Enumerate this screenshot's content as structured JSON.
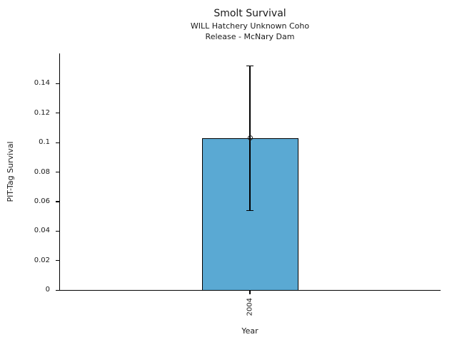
{
  "header": {
    "title": "Smolt Survival",
    "subtitle1": "WILL Hatchery Unknown Coho",
    "subtitle2": "Release - McNary Dam"
  },
  "chart_data": {
    "type": "bar",
    "title": "Smolt Survival",
    "subtitle": [
      "WILL Hatchery Unknown Coho",
      "Release - McNary Dam"
    ],
    "xlabel": "Year",
    "ylabel": "PIT-Tag Survival",
    "categories": [
      "2004"
    ],
    "values": [
      0.103
    ],
    "error_bars": [
      {
        "lower": 0.054,
        "upper": 0.152
      }
    ],
    "marker": "open-circle",
    "ylim": [
      0,
      0.1605
    ],
    "yticks": [
      0,
      0.02,
      0.04,
      0.06,
      0.08,
      0.1,
      0.12,
      0.14
    ],
    "ytick_labels": [
      "0",
      "0.02",
      "0.04",
      "0.06",
      "0.08",
      "0.1",
      "0.12",
      "0.14"
    ],
    "grid": false,
    "legend": null,
    "bar_color": "#5aa9d3",
    "bar_edge_color": "#000000",
    "axis_color": "#000000",
    "text_color": "#1a1a1a"
  }
}
